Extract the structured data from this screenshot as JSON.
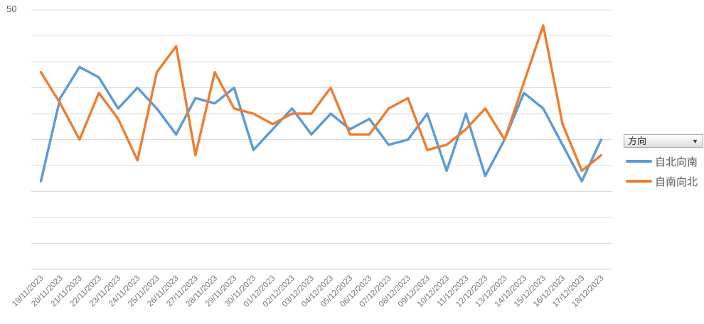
{
  "axis": {
    "y_max_label": "50"
  },
  "legend": {
    "field_button": {
      "label": "方向",
      "dropdown_icon": "▼"
    },
    "items": [
      {
        "label": "自北向南",
        "color": "#5B9BD5"
      },
      {
        "label": "自南向北",
        "color": "#ED7D31"
      }
    ]
  },
  "chart_data": {
    "type": "line",
    "title": "",
    "xlabel": "",
    "ylabel": "",
    "ylim": [
      0,
      50
    ],
    "y_gridline_step": 5,
    "grid": true,
    "legend_position": "right",
    "x": [
      "19/11/2023",
      "20/11/2023",
      "21/11/2023",
      "22/11/2023",
      "23/11/2023",
      "24/11/2023",
      "25/11/2023",
      "26/11/2023",
      "27/11/2023",
      "28/11/2023",
      "29/11/2023",
      "30/11/2023",
      "01/12/2023",
      "02/12/2023",
      "03/12/2023",
      "04/12/2023",
      "05/12/2023",
      "06/12/2023",
      "07/12/2023",
      "08/12/2023",
      "09/12/2023",
      "10/12/2023",
      "11/12/2023",
      "12/12/2023",
      "13/12/2023",
      "14/12/2023",
      "15/12/2023",
      "16/12/2023",
      "17/12/2023",
      "18/12/2023"
    ],
    "series": [
      {
        "name": "自北向南",
        "color": "#5B9BD5",
        "values": [
          17,
          33,
          39,
          37,
          31,
          35,
          31,
          26,
          33,
          32,
          35,
          23,
          27,
          31,
          26,
          30,
          27,
          29,
          24,
          25,
          30,
          19,
          30,
          18,
          25,
          34,
          31,
          24,
          17,
          25
        ]
      },
      {
        "name": "自南向北",
        "color": "#ED7D31",
        "values": [
          38,
          32,
          25,
          34,
          29,
          21,
          38,
          43,
          22,
          38,
          31,
          30,
          28,
          30,
          30,
          35,
          26,
          26,
          31,
          33,
          23,
          24,
          27,
          31,
          25,
          36,
          47,
          28,
          19,
          22
        ]
      }
    ],
    "tick_label_color": "#757575",
    "gridline_color": "#D9D9D9"
  }
}
